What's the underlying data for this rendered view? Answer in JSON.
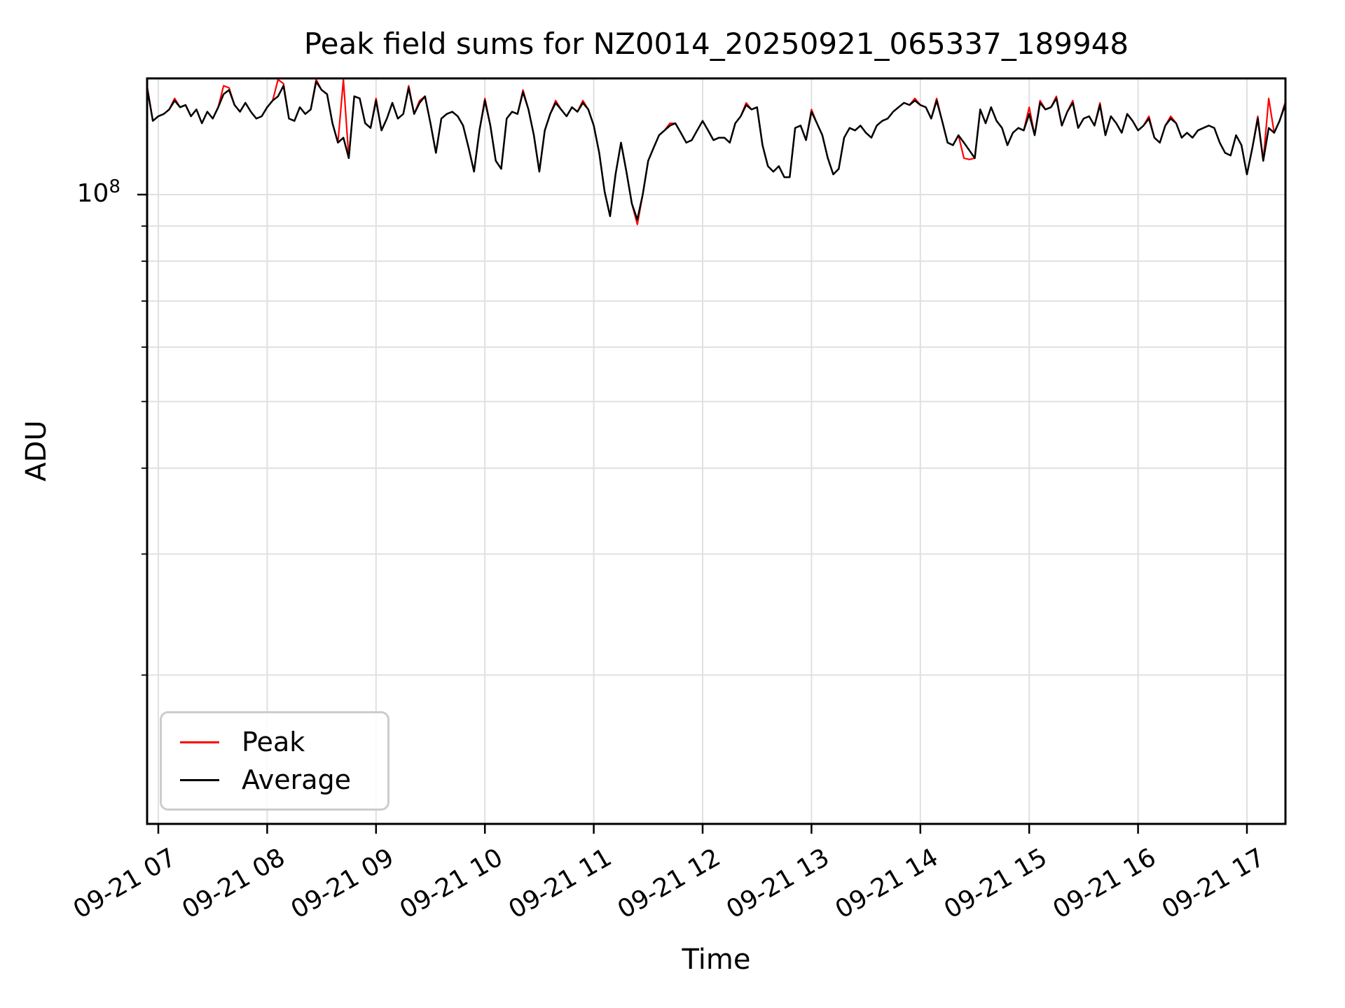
{
  "figure": {
    "title": "Peak field sums for NZ0014_20250921_065337_189948",
    "xlabel": "Time",
    "ylabel": "ADU"
  },
  "y_axis": {
    "tick_mantissa": "10",
    "tick_exponent": "8"
  },
  "colors": {
    "peak": "#ff0000",
    "average": "#000000",
    "grid": "#e0e0e0",
    "spine": "#000000",
    "tick": "#000000",
    "legend_border": "#cccccc"
  },
  "legend": {
    "position": "lower left"
  },
  "chart_data": {
    "type": "line",
    "title": "Peak field sums for NZ0014_20250921_065337_189948",
    "xlabel": "Time",
    "ylabel": "ADU",
    "yscale": "log",
    "grid": true,
    "legend_position": "lower left",
    "date": "09-21",
    "x_start_hour": 6.9,
    "x_step_hours": 0.05,
    "xlim_hours": [
      6.9,
      17.35
    ],
    "ylim_adu": [
      12200000,
      147700000
    ],
    "x_tick_hours": [
      7,
      8,
      9,
      10,
      11,
      12,
      13,
      14,
      15,
      16,
      17
    ],
    "x_tick_labels": [
      "09-21 07",
      "09-21 08",
      "09-21 09",
      "09-21 10",
      "09-21 11",
      "09-21 12",
      "09-21 13",
      "09-21 14",
      "09-21 15",
      "09-21 16",
      "09-21 17"
    ],
    "y_major_tick_adu_millions": 100,
    "y_minor_ticks_adu_millions": [
      90,
      80,
      70,
      60,
      50,
      40,
      30,
      20
    ],
    "y_gridlines_adu_millions": [
      100,
      90,
      80,
      70,
      60,
      50,
      40,
      30,
      20
    ],
    "values_unit": "millions of ADU",
    "series": [
      {
        "name": "Peak",
        "color": "#ff0000",
        "values_millions": [
          143,
          128,
          130,
          131,
          133,
          138,
          134,
          135,
          130,
          133,
          127,
          132,
          129,
          134,
          144,
          143,
          135,
          132,
          136,
          132,
          129,
          130,
          134,
          137,
          147,
          145,
          129,
          128,
          134,
          131,
          133,
          147,
          142,
          140,
          127,
          119,
          147,
          113,
          139,
          138,
          127,
          125,
          138,
          124,
          129,
          136,
          129,
          131,
          144,
          131,
          137,
          139,
          127,
          115,
          129,
          131,
          132,
          130,
          126,
          117,
          108,
          124,
          138,
          126,
          112,
          109,
          129,
          132,
          131,
          142,
          133,
          122,
          108,
          124,
          131,
          137,
          133,
          130,
          134,
          132,
          137,
          133,
          126,
          115,
          101,
          93,
          107,
          119,
          108,
          97,
          90.5,
          100,
          112,
          117,
          122,
          124,
          127,
          127,
          123,
          119,
          120,
          124,
          128,
          124,
          120,
          121,
          121,
          119,
          127,
          130,
          136,
          133,
          134,
          118,
          110,
          108,
          110,
          106,
          106,
          125,
          126,
          120,
          133,
          127,
          122,
          113,
          107,
          109,
          121,
          125,
          124,
          126,
          123,
          121,
          126,
          128,
          129,
          132,
          134,
          136,
          135,
          138,
          135,
          134,
          129,
          138,
          128,
          119,
          118,
          122,
          113,
          112.5,
          113,
          133,
          127,
          134,
          128,
          125,
          118,
          123,
          125,
          124,
          134,
          122,
          137,
          133,
          134,
          139,
          126,
          132,
          137,
          125,
          129,
          130,
          126,
          136,
          122,
          130,
          127,
          123,
          131,
          128,
          124,
          126,
          130,
          121,
          119,
          126,
          130,
          127,
          121,
          123,
          121,
          124,
          125,
          126,
          125,
          119,
          115,
          114,
          122,
          118,
          107,
          117,
          130,
          112,
          138,
          123,
          128,
          136
        ]
      },
      {
        "name": "Average",
        "color": "#000000",
        "values_millions": [
          142,
          128,
          130,
          131,
          133,
          137,
          134,
          135,
          130,
          133,
          127,
          132,
          129,
          134,
          140,
          142,
          135,
          132,
          136,
          132,
          129,
          130,
          134,
          137,
          139,
          144,
          129,
          128,
          134,
          131,
          133,
          146,
          142,
          140,
          127,
          119,
          121,
          113,
          139,
          138,
          127,
          125,
          137,
          124,
          129,
          136,
          129,
          131,
          143,
          131,
          136,
          139,
          127,
          115,
          129,
          131,
          132,
          130,
          126,
          117,
          108,
          124,
          137,
          126,
          112,
          109,
          129,
          132,
          131,
          141,
          133,
          122,
          108,
          124,
          131,
          136,
          133,
          130,
          134,
          132,
          136,
          133,
          126,
          115,
          101,
          93,
          107,
          119,
          108,
          97,
          92,
          100,
          112,
          117,
          122,
          124,
          126,
          127,
          123,
          119,
          120,
          124,
          128,
          124,
          120,
          121,
          121,
          119,
          127,
          130,
          135,
          133,
          134,
          118,
          110,
          108,
          110,
          106,
          106,
          125,
          126,
          120,
          132,
          127,
          122,
          113,
          107,
          109,
          121,
          125,
          124,
          126,
          123,
          121,
          126,
          128,
          129,
          132,
          134,
          136,
          135,
          137,
          135,
          134,
          129,
          137,
          128,
          119,
          118,
          122,
          119,
          116,
          113,
          133,
          127,
          134,
          128,
          125,
          118,
          123,
          125,
          124,
          131,
          122,
          136,
          133,
          134,
          138,
          126,
          132,
          136,
          125,
          129,
          130,
          126,
          135,
          122,
          130,
          127,
          123,
          131,
          128,
          124,
          126,
          129,
          121,
          119,
          126,
          129,
          127,
          121,
          123,
          121,
          124,
          125,
          126,
          125,
          119,
          115,
          114,
          122,
          118,
          107,
          117,
          129,
          112,
          125,
          123,
          128,
          135
        ]
      }
    ]
  }
}
